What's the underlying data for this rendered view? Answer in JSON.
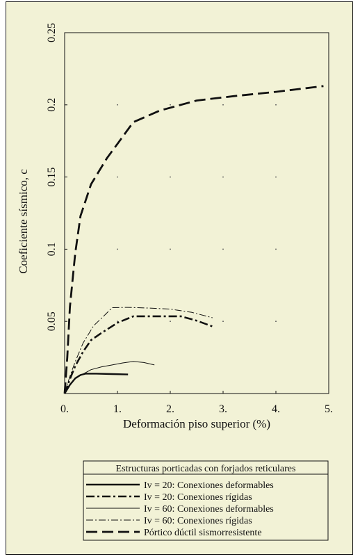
{
  "chart_data": {
    "type": "line",
    "title": "",
    "xlabel": "Deformación piso superior (%)",
    "ylabel": "Coeficiente sísmico, c",
    "xlim": [
      0,
      5
    ],
    "ylim": [
      0,
      0.25
    ],
    "x_ticks": [
      {
        "value": 0,
        "label": "0."
      },
      {
        "value": 1,
        "label": "1."
      },
      {
        "value": 2,
        "label": "2."
      },
      {
        "value": 3,
        "label": "3."
      },
      {
        "value": 4,
        "label": "4."
      },
      {
        "value": 5,
        "label": "5."
      }
    ],
    "y_ticks": [
      {
        "value": 0.05,
        "label": "0.05"
      },
      {
        "value": 0.1,
        "label": "0.1"
      },
      {
        "value": 0.15,
        "label": "0.15"
      },
      {
        "value": 0.2,
        "label": "0.2"
      },
      {
        "value": 0.25,
        "label": "0.25"
      }
    ],
    "grid": "dots at tick intersections",
    "legend": {
      "title": "Estructuras porticadas con forjados reticulares",
      "placement": "bottom"
    },
    "series": [
      {
        "name": "Iv = 20: Conexiones deformables",
        "style": "solid-thick",
        "points": [
          [
            0,
            0
          ],
          [
            0.1,
            0.006
          ],
          [
            0.2,
            0.0105
          ],
          [
            0.3,
            0.0128
          ],
          [
            0.4,
            0.0138
          ],
          [
            0.6,
            0.0138
          ],
          [
            0.9,
            0.0135
          ],
          [
            1.2,
            0.0132
          ]
        ]
      },
      {
        "name": "Iv = 20: Conexiones rígidas",
        "style": "dashdot-thick",
        "points": [
          [
            0,
            0
          ],
          [
            0.1,
            0.01
          ],
          [
            0.2,
            0.019
          ],
          [
            0.35,
            0.029
          ],
          [
            0.5,
            0.037
          ],
          [
            0.7,
            0.042
          ],
          [
            1.0,
            0.049
          ],
          [
            1.3,
            0.0535
          ],
          [
            1.6,
            0.0535
          ],
          [
            2.2,
            0.0535
          ],
          [
            2.5,
            0.0505
          ],
          [
            2.8,
            0.0465
          ]
        ]
      },
      {
        "name": "Iv = 60: Conexiones deformables",
        "style": "solid-thin",
        "points": [
          [
            0,
            0
          ],
          [
            0.1,
            0.006
          ],
          [
            0.2,
            0.0105
          ],
          [
            0.35,
            0.0135
          ],
          [
            0.5,
            0.0165
          ],
          [
            0.7,
            0.0185
          ],
          [
            0.9,
            0.0198
          ],
          [
            1.1,
            0.0212
          ],
          [
            1.3,
            0.0222
          ],
          [
            1.5,
            0.0215
          ],
          [
            1.7,
            0.0198
          ]
        ]
      },
      {
        "name": "Iv = 60: Conexiones rígidas",
        "style": "dashdot-thin",
        "points": [
          [
            0,
            0
          ],
          [
            0.1,
            0.012
          ],
          [
            0.2,
            0.022
          ],
          [
            0.35,
            0.035
          ],
          [
            0.55,
            0.047
          ],
          [
            0.75,
            0.054
          ],
          [
            0.9,
            0.0595
          ],
          [
            1.2,
            0.0597
          ],
          [
            1.6,
            0.0592
          ],
          [
            2.0,
            0.0585
          ],
          [
            2.4,
            0.0563
          ],
          [
            2.8,
            0.0525
          ]
        ]
      },
      {
        "name": "Pórtico dúctil sismorresistente",
        "style": "dashed-thick",
        "points": [
          [
            0,
            0
          ],
          [
            0.05,
            0.025
          ],
          [
            0.1,
            0.06
          ],
          [
            0.2,
            0.097
          ],
          [
            0.3,
            0.123
          ],
          [
            0.5,
            0.145
          ],
          [
            0.8,
            0.163
          ],
          [
            1.0,
            0.173
          ],
          [
            1.3,
            0.188
          ],
          [
            1.8,
            0.196
          ],
          [
            2.5,
            0.203
          ],
          [
            3.2,
            0.206
          ],
          [
            4.0,
            0.209
          ],
          [
            4.9,
            0.213
          ]
        ]
      }
    ]
  }
}
